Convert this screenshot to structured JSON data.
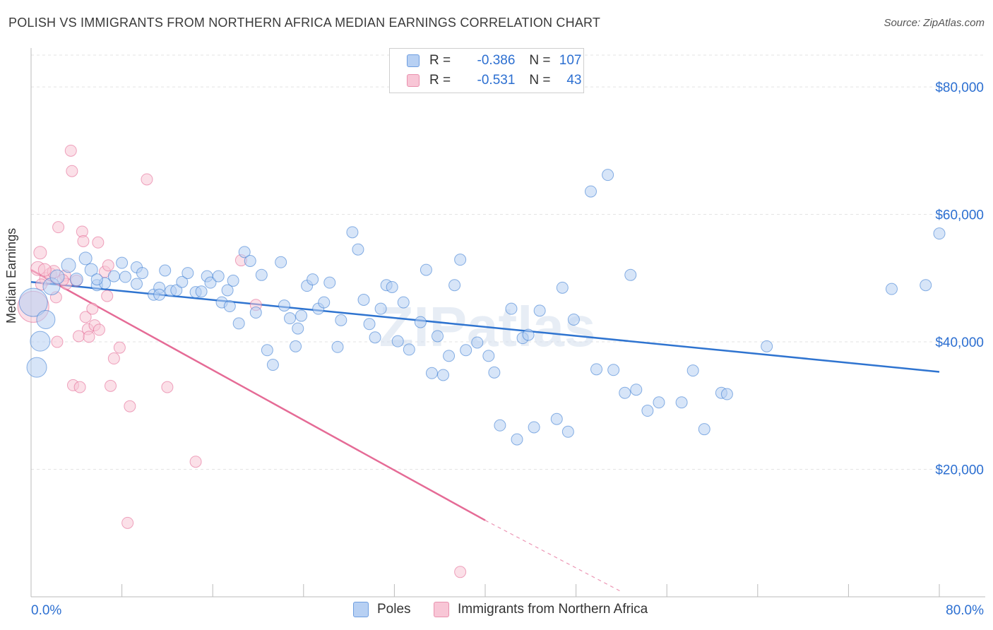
{
  "title": "POLISH VS IMMIGRANTS FROM NORTHERN AFRICA MEDIAN EARNINGS CORRELATION CHART",
  "source": "Source: ZipAtlas.com",
  "watermark": "ZIPatlas",
  "legend": {
    "rows": [
      {
        "r_label": "R =",
        "r_value": "-0.386",
        "n_label": "N =",
        "n_value": "107"
      },
      {
        "r_label": "R =",
        "r_value": "-0.531",
        "n_label": "N =",
        "n_value": "43"
      }
    ]
  },
  "bottom_legend": {
    "series1": "Poles",
    "series2": "Immigrants from Northern Africa"
  },
  "colors": {
    "blue": "#2f74d0",
    "blue_fill": "#b7d0f3",
    "pink": "#e56b96",
    "pink_fill": "#f8c6d6",
    "axis_text": "#2c6fd1"
  },
  "chart_data": {
    "type": "scatter",
    "xlabel": "",
    "ylabel": "Median Earnings",
    "xlim": [
      0,
      80
    ],
    "ylim": [
      0,
      85000
    ],
    "x_tick_labels": [
      "0.0%",
      "80.0%"
    ],
    "y_tick_labels": [
      "$20,000",
      "$40,000",
      "$60,000",
      "$80,000"
    ],
    "y_ticks": [
      20000,
      40000,
      60000,
      80000
    ],
    "grid": true,
    "series": [
      {
        "name": "Poles",
        "color": "#2f74d0",
        "trend": {
          "x0": 0,
          "y0": 49400,
          "x1": 80,
          "y1": 35300
        },
        "points": [
          [
            0.2,
            46200,
            20
          ],
          [
            0.5,
            36000,
            14
          ],
          [
            0.8,
            40100,
            14
          ],
          [
            1.3,
            43500,
            13
          ],
          [
            1.8,
            48700,
            12
          ],
          [
            2.3,
            50200,
            10
          ],
          [
            3.3,
            52000,
            10
          ],
          [
            4.0,
            49800,
            9
          ],
          [
            4.8,
            53100,
            9
          ],
          [
            5.3,
            51300,
            9
          ],
          [
            5.8,
            48900,
            8
          ],
          [
            6.5,
            49200,
            8
          ],
          [
            7.3,
            50300,
            8
          ],
          [
            8.0,
            52400,
            8
          ],
          [
            8.3,
            50200,
            8
          ],
          [
            9.3,
            51700,
            8
          ],
          [
            9.8,
            50800,
            8
          ],
          [
            10.8,
            47400,
            8
          ],
          [
            11.3,
            48500,
            8
          ],
          [
            11.8,
            51200,
            8
          ],
          [
            12.3,
            48000,
            8
          ],
          [
            12.8,
            48100,
            8
          ],
          [
            13.3,
            49400,
            8
          ],
          [
            13.8,
            50800,
            8
          ],
          [
            14.5,
            47800,
            8
          ],
          [
            15.0,
            47900,
            8
          ],
          [
            15.5,
            50300,
            8
          ],
          [
            15.8,
            49300,
            8
          ],
          [
            16.5,
            50300,
            8
          ],
          [
            16.8,
            46200,
            8
          ],
          [
            17.3,
            48100,
            8
          ],
          [
            17.8,
            49600,
            8
          ],
          [
            18.3,
            42900,
            8
          ],
          [
            18.8,
            54100,
            8
          ],
          [
            19.3,
            52700,
            8
          ],
          [
            19.8,
            44600,
            8
          ],
          [
            20.3,
            50500,
            8
          ],
          [
            20.8,
            38700,
            8
          ],
          [
            21.3,
            36400,
            8
          ],
          [
            22.0,
            52500,
            8
          ],
          [
            22.3,
            45700,
            8
          ],
          [
            22.8,
            43700,
            8
          ],
          [
            23.3,
            39300,
            8
          ],
          [
            23.8,
            44100,
            8
          ],
          [
            24.3,
            48800,
            8
          ],
          [
            24.8,
            49800,
            8
          ],
          [
            25.3,
            45200,
            8
          ],
          [
            25.8,
            46200,
            8
          ],
          [
            26.3,
            49300,
            8
          ],
          [
            27.0,
            39200,
            8
          ],
          [
            27.3,
            43400,
            8
          ],
          [
            28.3,
            57200,
            8
          ],
          [
            28.8,
            54500,
            8
          ],
          [
            29.3,
            46600,
            8
          ],
          [
            29.8,
            42800,
            8
          ],
          [
            30.3,
            40700,
            8
          ],
          [
            30.8,
            45200,
            8
          ],
          [
            31.3,
            48900,
            8
          ],
          [
            31.8,
            48600,
            8
          ],
          [
            32.3,
            40100,
            8
          ],
          [
            32.8,
            46200,
            8
          ],
          [
            33.3,
            38800,
            8
          ],
          [
            34.3,
            43100,
            8
          ],
          [
            34.8,
            51300,
            8
          ],
          [
            35.3,
            35100,
            8
          ],
          [
            35.8,
            40900,
            8
          ],
          [
            36.3,
            34800,
            8
          ],
          [
            36.8,
            37800,
            8
          ],
          [
            37.3,
            48900,
            8
          ],
          [
            37.8,
            52900,
            8
          ],
          [
            38.3,
            38700,
            8
          ],
          [
            39.3,
            39900,
            8
          ],
          [
            40.3,
            37800,
            8
          ],
          [
            40.8,
            35200,
            8
          ],
          [
            41.3,
            26900,
            8
          ],
          [
            42.3,
            45200,
            8
          ],
          [
            42.8,
            24700,
            8
          ],
          [
            43.3,
            40600,
            8
          ],
          [
            43.8,
            41100,
            8
          ],
          [
            44.3,
            26600,
            8
          ],
          [
            44.8,
            44900,
            8
          ],
          [
            46.3,
            27900,
            8
          ],
          [
            46.8,
            48500,
            8
          ],
          [
            47.3,
            25900,
            8
          ],
          [
            47.8,
            43500,
            8
          ],
          [
            49.3,
            63600,
            8
          ],
          [
            49.8,
            35700,
            8
          ],
          [
            50.8,
            66200,
            8
          ],
          [
            51.3,
            35600,
            8
          ],
          [
            52.3,
            32000,
            8
          ],
          [
            52.8,
            50500,
            8
          ],
          [
            53.3,
            32500,
            8
          ],
          [
            54.3,
            29200,
            8
          ],
          [
            55.3,
            30500,
            8
          ],
          [
            57.3,
            30500,
            8
          ],
          [
            58.3,
            35500,
            8
          ],
          [
            59.3,
            26300,
            8
          ],
          [
            60.8,
            32000,
            8
          ],
          [
            61.3,
            31800,
            8
          ],
          [
            64.8,
            39300,
            8
          ],
          [
            75.8,
            48300,
            8
          ],
          [
            78.8,
            48900,
            8
          ],
          [
            80.0,
            57000,
            8
          ],
          [
            23.5,
            42100,
            8
          ],
          [
            17.5,
            45600,
            8
          ],
          [
            11.3,
            47400,
            8
          ],
          [
            9.3,
            49100,
            8
          ],
          [
            5.8,
            49800,
            8
          ]
        ]
      },
      {
        "name": "Immigrants from Northern Africa",
        "color": "#e56b96",
        "trend": {
          "x0": 0,
          "y0": 51300,
          "x1": 40,
          "y1": 12000,
          "dash_x1": 52,
          "dash_y1": 800
        },
        "points": [
          [
            0.2,
            45500,
            22
          ],
          [
            0.6,
            51500,
            10
          ],
          [
            0.8,
            54000,
            9
          ],
          [
            1.3,
            49900,
            9
          ],
          [
            1.7,
            50600,
            9
          ],
          [
            2.0,
            51000,
            9
          ],
          [
            2.2,
            47000,
            8
          ],
          [
            2.3,
            40000,
            8
          ],
          [
            2.4,
            58000,
            8
          ],
          [
            3.0,
            50400,
            8
          ],
          [
            3.1,
            49100,
            8
          ],
          [
            3.5,
            70000,
            8
          ],
          [
            3.6,
            66800,
            8
          ],
          [
            3.7,
            33200,
            8
          ],
          [
            4.2,
            40900,
            8
          ],
          [
            4.3,
            32900,
            8
          ],
          [
            4.5,
            57300,
            8
          ],
          [
            4.6,
            55800,
            8
          ],
          [
            4.8,
            43900,
            8
          ],
          [
            5.0,
            42000,
            8
          ],
          [
            5.1,
            40800,
            8
          ],
          [
            5.4,
            45200,
            8
          ],
          [
            5.6,
            42600,
            8
          ],
          [
            6.0,
            41900,
            8
          ],
          [
            6.5,
            51000,
            8
          ],
          [
            6.7,
            47200,
            8
          ],
          [
            6.8,
            52000,
            8
          ],
          [
            7.0,
            33100,
            8
          ],
          [
            7.3,
            37400,
            8
          ],
          [
            7.8,
            39100,
            8
          ],
          [
            8.5,
            11600,
            8
          ],
          [
            8.7,
            29900,
            8
          ],
          [
            10.2,
            65500,
            8
          ],
          [
            12.0,
            32900,
            8
          ],
          [
            14.5,
            21200,
            8
          ],
          [
            18.5,
            52800,
            8
          ],
          [
            19.8,
            45800,
            8
          ],
          [
            37.8,
            3900,
            8
          ],
          [
            1.2,
            51300,
            9
          ],
          [
            2.8,
            49700,
            8
          ],
          [
            0.9,
            49000,
            8
          ],
          [
            5.9,
            55600,
            8
          ],
          [
            4.0,
            49600,
            8
          ]
        ]
      }
    ]
  }
}
